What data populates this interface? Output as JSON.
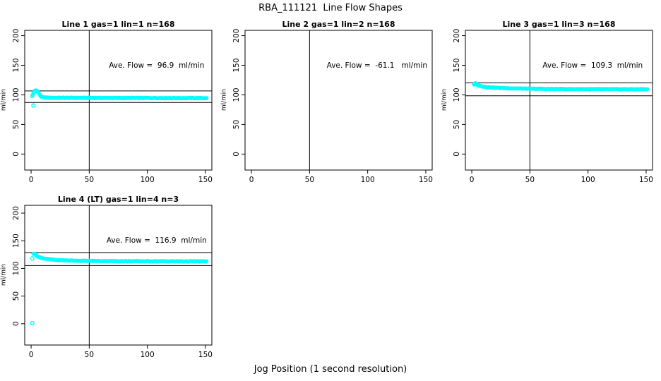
{
  "figure": {
    "title": "RBA_111121  Line Flow Shapes",
    "xlabel": "Jog Position (1 second resolution)",
    "background_color": "#ffffff",
    "point_color": "#00ffff",
    "line_color": "#000000"
  },
  "chart_data": {
    "type": "scatter",
    "title": "RBA_111121  Line Flow Shapes",
    "xlabel": "Jog Position (1 second resolution)",
    "ylabel": "ml/min",
    "x_ticks": [
      0,
      50,
      100,
      150
    ],
    "y_ticks": [
      0,
      50,
      100,
      150,
      200
    ],
    "xlim": [
      0,
      150
    ],
    "ylim": [
      0,
      200
    ],
    "grid": false,
    "marker": "open-circle",
    "marker_color": "#00ffff",
    "plots": [
      {
        "title": "Line 1 gas=1 lin=1 n=168",
        "line": 1,
        "gas": 1,
        "lin": 1,
        "n": 168,
        "ave_flow": 96.9,
        "ave_flow_label": "Ave. Flow =  96.9  ml/min",
        "limit_lines": [
          106.6,
          87.2
        ],
        "vline_x": 50,
        "x_range": [
          -5.5,
          155.5
        ],
        "y_range": [
          -27,
          209
        ],
        "annotation_pos": [
          108,
          150
        ],
        "profile": [
          [
            1,
            97.5
          ],
          [
            2,
            103
          ],
          [
            3,
            106.5
          ],
          [
            4,
            107.5
          ],
          [
            5,
            107
          ],
          [
            6,
            104.5
          ],
          [
            7,
            101.5
          ],
          [
            8,
            98.5
          ],
          [
            9,
            96.8
          ],
          [
            10,
            96
          ],
          [
            12,
            95.4
          ],
          [
            15,
            95.1
          ],
          [
            20,
            95
          ],
          [
            30,
            95
          ],
          [
            40,
            94.9
          ],
          [
            60,
            94.8
          ],
          [
            80,
            94.7
          ],
          [
            100,
            94.7
          ],
          [
            120,
            94.6
          ],
          [
            135,
            94.6
          ],
          [
            151,
            94.5
          ]
        ],
        "outliers": [
          [
            2,
            82
          ]
        ]
      },
      {
        "title": "Line 2 gas=1 lin=2 n=168",
        "line": 2,
        "gas": 1,
        "lin": 2,
        "n": 168,
        "ave_flow": -61.1,
        "ave_flow_label": "Ave. Flow =  -61.1   ml/min",
        "limit_lines": [],
        "vline_x": 50,
        "x_range": [
          -5.5,
          155.5
        ],
        "y_range": [
          -27,
          209
        ],
        "annotation_pos": [
          108,
          150
        ],
        "profile": [],
        "outliers": []
      },
      {
        "title": "Line 3 gas=1 lin=3 n=168",
        "line": 3,
        "gas": 1,
        "lin": 3,
        "n": 168,
        "ave_flow": 109.3,
        "ave_flow_label": "Ave. Flow =  109.3  ml/min",
        "limit_lines": [
          120.2,
          98.4
        ],
        "vline_x": 50,
        "x_range": [
          -5.5,
          155.5
        ],
        "y_range": [
          -27,
          209
        ],
        "annotation_pos": [
          104,
          150
        ],
        "profile": [
          [
            2,
            117.5
          ],
          [
            3,
            119.5
          ],
          [
            4,
            118
          ],
          [
            5,
            116.5
          ],
          [
            6,
            115.8
          ],
          [
            8,
            114.8
          ],
          [
            10,
            114
          ],
          [
            13,
            113.2
          ],
          [
            16,
            112.6
          ],
          [
            20,
            112.1
          ],
          [
            25,
            111.6
          ],
          [
            30,
            111.3
          ],
          [
            40,
            110.8
          ],
          [
            50,
            110.4
          ],
          [
            60,
            110.1
          ],
          [
            75,
            109.9
          ],
          [
            90,
            109.7
          ],
          [
            110,
            109.6
          ],
          [
            130,
            109.5
          ],
          [
            151,
            109.5
          ]
        ],
        "outliers": []
      },
      {
        "title": "Line 4 (LT) gas=1 lin=4 n=3",
        "line": 4,
        "gas": 1,
        "lin": 4,
        "n": 3,
        "ave_flow": 116.9,
        "ave_flow_label": "Ave. Flow =  116.9  ml/min",
        "limit_lines": [
          128.6,
          105.2
        ],
        "vline_x": 50,
        "x_range": [
          -5.5,
          155.5
        ],
        "y_range": [
          -38.5,
          214.1
        ],
        "annotation_pos": [
          108,
          150
        ],
        "profile": [
          [
            2,
            126
          ],
          [
            3,
            127
          ],
          [
            4,
            124.5
          ],
          [
            5,
            122.5
          ],
          [
            6,
            121.3
          ],
          [
            8,
            119.6
          ],
          [
            10,
            118.4
          ],
          [
            13,
            117.2
          ],
          [
            16,
            116.4
          ],
          [
            20,
            115.6
          ],
          [
            25,
            114.9
          ],
          [
            30,
            114.5
          ],
          [
            40,
            113.9
          ],
          [
            50,
            113.6
          ],
          [
            60,
            113.3
          ],
          [
            75,
            113.1
          ],
          [
            90,
            113
          ],
          [
            110,
            112.9
          ],
          [
            130,
            112.8
          ],
          [
            151,
            112.8
          ]
        ],
        "outliers": [
          [
            1,
            118
          ],
          [
            1,
            1
          ]
        ]
      }
    ]
  }
}
